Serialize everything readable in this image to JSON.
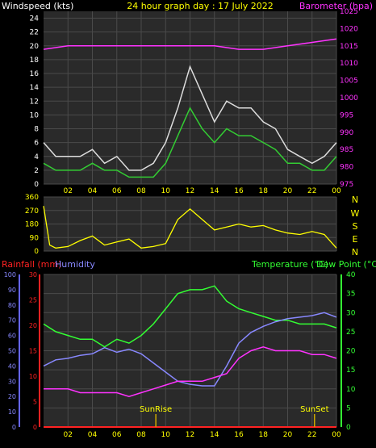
{
  "colors": {
    "background": "#000000",
    "plot_bg": "#2a2a2a",
    "grid": "#4a4a4a",
    "wind_text": "#ffffff",
    "title_text": "#ffff00",
    "barometer": "#ff33ff",
    "gust": "#dddddd",
    "windspeed": "#33cc33",
    "direction": "#ffff00",
    "rainfall": "#ff2222",
    "humidity": "#8888ff",
    "temperature": "#33ff33",
    "dewpoint": "#ff33ff",
    "sun_marker": "#ccaa00",
    "axis_blue": "#6666ff"
  },
  "top": {
    "left_label": "Windspeed (kts)",
    "center_label": "24 hour graph day : 17 July 2022",
    "right_label": "Barometer (hpa)"
  },
  "middle": {
    "compass": [
      "N",
      "W",
      "S",
      "E",
      "N"
    ]
  },
  "bottom": {
    "rain_label": "Rainfall (mm)",
    "humidity_label": "Humidity",
    "temp_label": "Temperature (°C)",
    "dew_label": "Dew Point (°C)",
    "sunrise_label": "SunRise",
    "sunset_label": "SunSet"
  },
  "chart_data": [
    {
      "type": "line",
      "x_ticks": [
        "02",
        "04",
        "06",
        "08",
        "10",
        "12",
        "14",
        "16",
        "18",
        "20",
        "22",
        "00"
      ],
      "y_left_ticks": [
        "0",
        "2",
        "4",
        "6",
        "8",
        "10",
        "12",
        "14",
        "16",
        "18",
        "20",
        "22",
        "24"
      ],
      "y_right_ticks": [
        "975",
        "980",
        "985",
        "990",
        "995",
        "1000",
        "1005",
        "1010",
        "1015",
        "1020",
        "1025"
      ],
      "ylim_left": [
        0,
        25
      ],
      "ylim_right": [
        975,
        1025
      ],
      "series": [
        {
          "name": "gust",
          "x": [
            0,
            1,
            2,
            3,
            4,
            5,
            6,
            7,
            8,
            9,
            10,
            11,
            12,
            13,
            14,
            15,
            16,
            17,
            18,
            19,
            20,
            21,
            22,
            23,
            24
          ],
          "y": [
            6,
            4,
            4,
            4,
            5,
            3,
            4,
            2,
            2,
            3,
            6,
            11,
            17,
            13,
            9,
            12,
            11,
            11,
            9,
            8,
            5,
            4,
            3,
            4,
            6
          ]
        },
        {
          "name": "windspeed",
          "x": [
            0,
            1,
            2,
            3,
            4,
            5,
            6,
            7,
            8,
            9,
            10,
            11,
            12,
            13,
            14,
            15,
            16,
            17,
            18,
            19,
            20,
            21,
            22,
            23,
            24
          ],
          "y": [
            3,
            2,
            2,
            2,
            3,
            2,
            2,
            1,
            1,
            1,
            3,
            7,
            11,
            8,
            6,
            8,
            7,
            7,
            6,
            5,
            3,
            3,
            2,
            2,
            4
          ]
        },
        {
          "name": "barometer",
          "x": [
            0,
            2,
            4,
            6,
            8,
            10,
            12,
            14,
            16,
            18,
            20,
            22,
            24
          ],
          "y": [
            1014,
            1015,
            1015,
            1015,
            1015,
            1015,
            1015,
            1015,
            1014,
            1014,
            1015,
            1016,
            1017
          ]
        }
      ]
    },
    {
      "type": "line",
      "y_ticks": [
        "0",
        "90",
        "180",
        "270",
        "360"
      ],
      "ylim": [
        0,
        360
      ],
      "series": [
        {
          "name": "direction",
          "x": [
            0,
            0.5,
            1,
            2,
            3,
            4,
            5,
            6,
            7,
            8,
            9,
            10,
            11,
            12,
            13,
            14,
            15,
            16,
            17,
            18,
            19,
            20,
            21,
            22,
            23,
            24
          ],
          "y": [
            300,
            40,
            20,
            30,
            70,
            100,
            40,
            60,
            80,
            20,
            30,
            50,
            210,
            280,
            210,
            140,
            160,
            180,
            160,
            170,
            140,
            120,
            110,
            130,
            110,
            20
          ]
        }
      ]
    },
    {
      "type": "line",
      "y_left_ticks": [
        "0",
        "10",
        "20",
        "30",
        "40",
        "50",
        "60",
        "70",
        "80",
        "90",
        "100"
      ],
      "rain_ticks": [
        "0",
        "5",
        "10",
        "15",
        "20",
        "25",
        "30"
      ],
      "temp_ticks": [
        "0",
        "5",
        "10",
        "15",
        "20",
        "25",
        "30",
        "35",
        "40"
      ],
      "ylim_humidity": [
        0,
        100
      ],
      "ylim_rain": [
        0,
        30
      ],
      "ylim_temp": [
        0,
        40
      ],
      "series": [
        {
          "name": "temperature",
          "x": [
            0,
            1,
            2,
            3,
            4,
            5,
            6,
            7,
            8,
            9,
            10,
            11,
            12,
            13,
            14,
            15,
            16,
            17,
            18,
            19,
            20,
            21,
            22,
            23,
            24
          ],
          "y": [
            27,
            25,
            24,
            23,
            23,
            21,
            23,
            22,
            24,
            27,
            31,
            35,
            36,
            36,
            37,
            33,
            31,
            30,
            29,
            28,
            28,
            27,
            27,
            27,
            26
          ]
        },
        {
          "name": "humidity",
          "x": [
            0,
            1,
            2,
            3,
            4,
            5,
            6,
            7,
            8,
            9,
            10,
            11,
            12,
            13,
            14,
            15,
            16,
            17,
            18,
            19,
            20,
            21,
            22,
            23,
            24
          ],
          "y": [
            40,
            44,
            45,
            47,
            48,
            52,
            49,
            51,
            48,
            42,
            36,
            30,
            28,
            27,
            27,
            40,
            55,
            62,
            66,
            69,
            71,
            72,
            73,
            75,
            72
          ]
        },
        {
          "name": "dewpoint",
          "x": [
            0,
            1,
            2,
            3,
            4,
            5,
            6,
            7,
            8,
            9,
            10,
            11,
            12,
            13,
            14,
            15,
            16,
            17,
            18,
            19,
            20,
            21,
            22,
            23,
            24
          ],
          "y": [
            10,
            10,
            10,
            9,
            9,
            9,
            9,
            8,
            9,
            10,
            11,
            12,
            12,
            12,
            13,
            14,
            18,
            20,
            21,
            20,
            20,
            20,
            19,
            19,
            18
          ]
        },
        {
          "name": "rainfall",
          "x": [
            0,
            24
          ],
          "y": [
            0,
            0
          ]
        }
      ],
      "sunrise_hour": 9.2,
      "sunset_hour": 22.2
    }
  ]
}
